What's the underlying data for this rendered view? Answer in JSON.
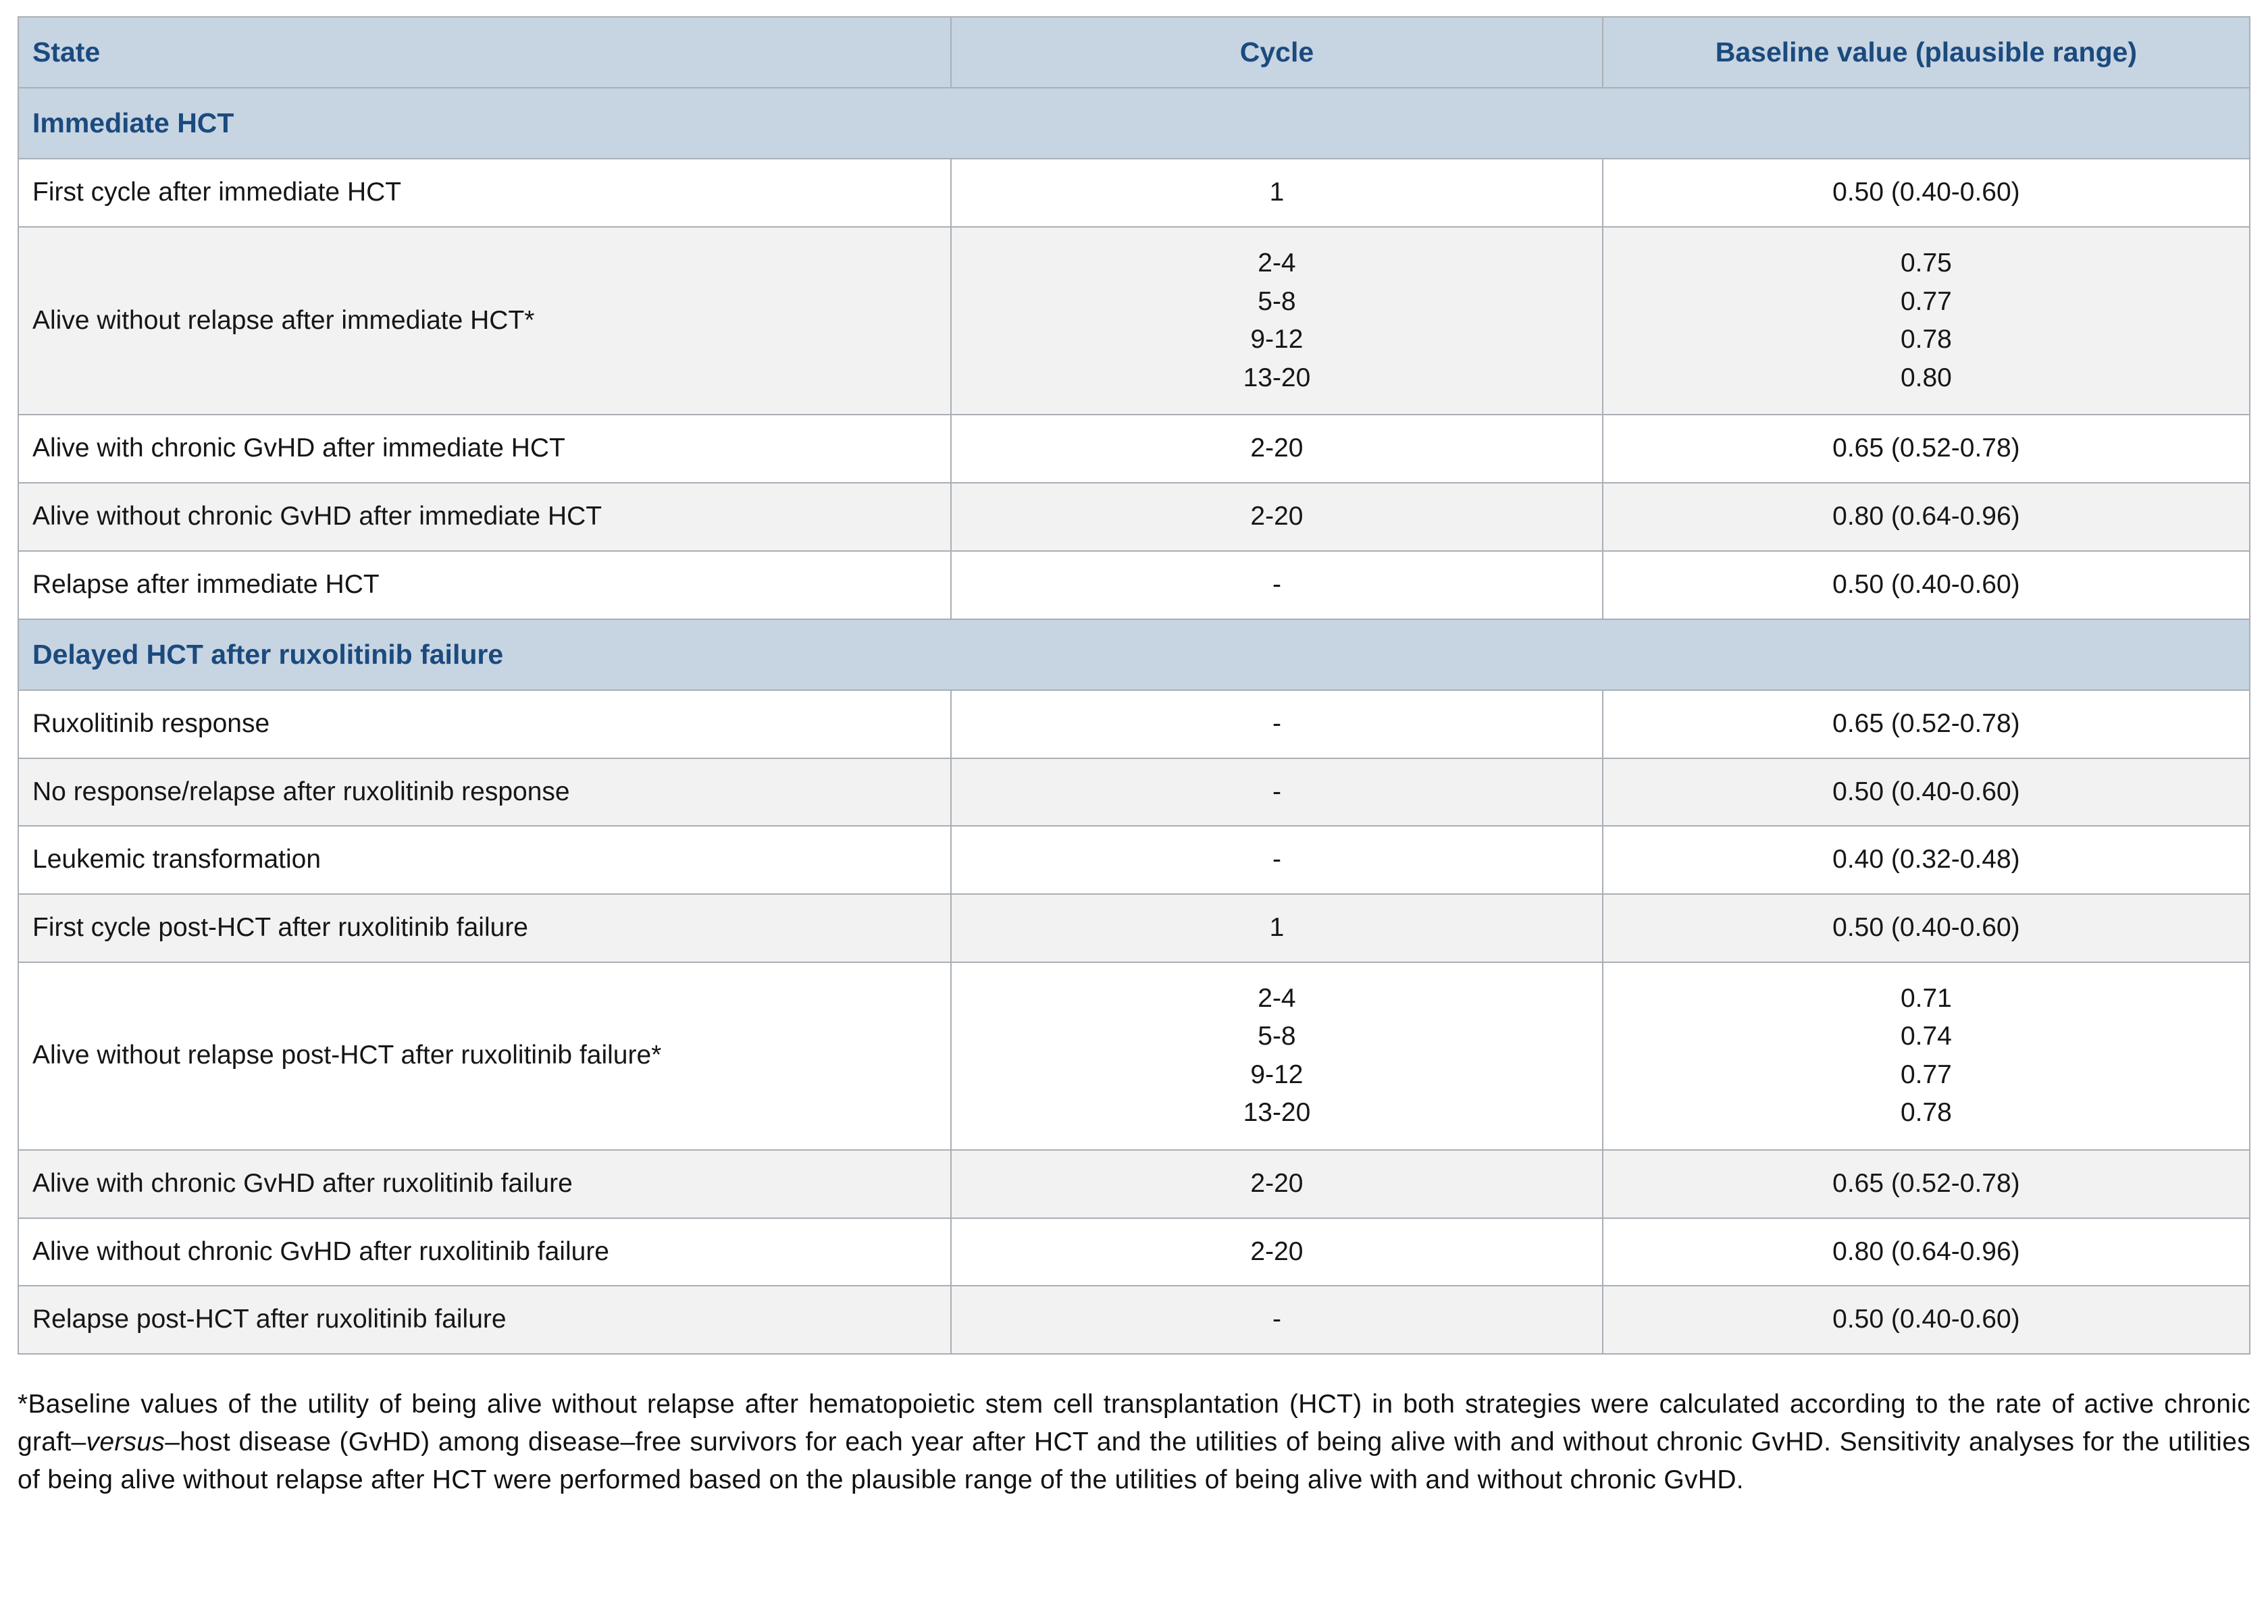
{
  "colors": {
    "header_bg": "#c7d5e2",
    "header_text": "#1b4a7e",
    "row_alt_bg": "#f2f2f2",
    "border": "#a9afb5"
  },
  "table": {
    "columns": [
      "State",
      "Cycle",
      "Baseline value (plausible range)"
    ],
    "sections": [
      {
        "title": "Immediate HCT",
        "rows": [
          {
            "state": "First cycle after immediate HCT",
            "cycle": "1",
            "value": "0.50 (0.40-0.60)"
          },
          {
            "state": "Alive without relapse after immediate HCT*",
            "cycle": [
              "2-4",
              "5-8",
              "9-12",
              "13-20"
            ],
            "value": [
              "0.75",
              "0.77",
              "0.78",
              "0.80"
            ]
          },
          {
            "state": "Alive with chronic GvHD after immediate HCT",
            "cycle": "2-20",
            "value": "0.65 (0.52-0.78)"
          },
          {
            "state": "Alive without chronic GvHD after immediate HCT",
            "cycle": "2-20",
            "value": "0.80 (0.64-0.96)"
          },
          {
            "state": "Relapse after immediate HCT",
            "cycle": "-",
            "value": "0.50 (0.40-0.60)"
          }
        ]
      },
      {
        "title": "Delayed HCT after ruxolitinib failure",
        "rows": [
          {
            "state": "Ruxolitinib response",
            "cycle": "-",
            "value": "0.65 (0.52-0.78)"
          },
          {
            "state": "No response/relapse after ruxolitinib response",
            "cycle": "-",
            "value": "0.50 (0.40-0.60)"
          },
          {
            "state": "Leukemic transformation",
            "cycle": "-",
            "value": "0.40 (0.32-0.48)"
          },
          {
            "state": "First cycle post-HCT after ruxolitinib failure",
            "cycle": "1",
            "value": "0.50 (0.40-0.60)"
          },
          {
            "state": "Alive without relapse post-HCT after ruxolitinib failure*",
            "cycle": [
              "2-4",
              "5-8",
              "9-12",
              "13-20"
            ],
            "value": [
              "0.71",
              "0.74",
              "0.77",
              "0.78"
            ]
          },
          {
            "state": "Alive with chronic GvHD after ruxolitinib failure",
            "cycle": "2-20",
            "value": "0.65 (0.52-0.78)"
          },
          {
            "state": "Alive without chronic GvHD after ruxolitinib failure",
            "cycle": "2-20",
            "value": "0.80 (0.64-0.96)"
          },
          {
            "state": "Relapse post-HCT after ruxolitinib failure",
            "cycle": "-",
            "value": "0.50 (0.40-0.60)"
          }
        ]
      }
    ]
  },
  "footnote": {
    "part1": "*Baseline values of the utility of being alive without relapse after hematopoietic stem cell transplantation (HCT) in both strategies were calculated according to the rate of active chronic graft–",
    "italic": "versus",
    "part2": "–host disease (GvHD) among disease–free survivors for each year after HCT and the utilities of being alive with and without chronic GvHD. Sensitivity analyses for the utilities of being alive without relapse after HCT were performed based on the plausible range of the utilities of being alive with and without chronic GvHD."
  }
}
